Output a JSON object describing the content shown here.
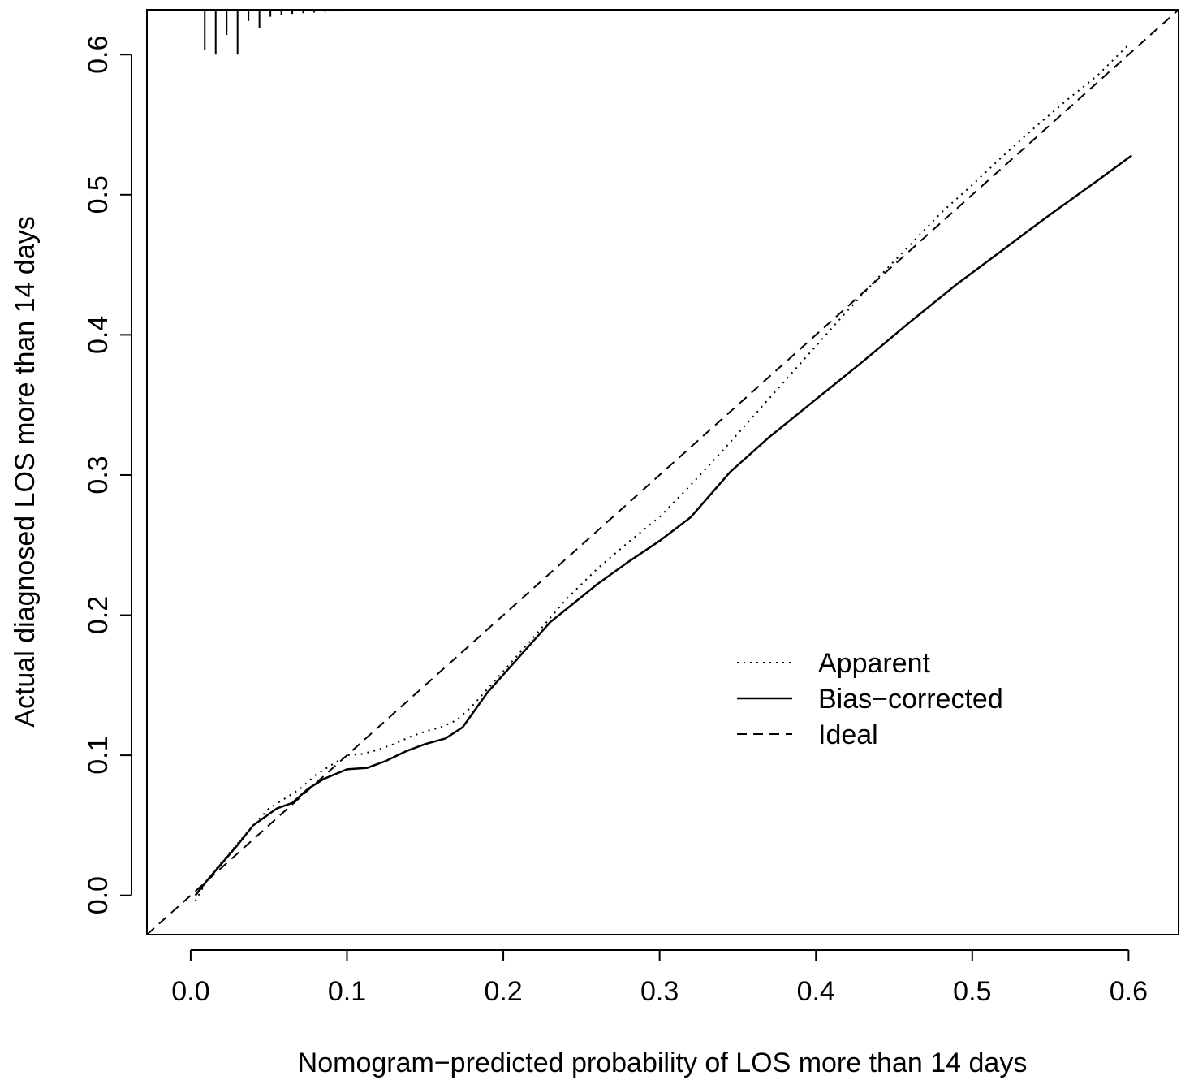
{
  "chart_data": {
    "type": "line",
    "title": "",
    "xlabel": "Nomogram−predicted probability of LOS more than 14 days",
    "ylabel": "Actual diagnosed LOS more than 14 days",
    "xlim": [
      -0.028,
      0.632
    ],
    "ylim": [
      -0.028,
      0.632
    ],
    "x_ticks": [
      0.0,
      0.1,
      0.2,
      0.3,
      0.4,
      0.5,
      0.6
    ],
    "x_tick_labels": [
      "0.0",
      "0.1",
      "0.2",
      "0.3",
      "0.4",
      "0.5",
      "0.6"
    ],
    "y_ticks": [
      0.0,
      0.1,
      0.2,
      0.3,
      0.4,
      0.5,
      0.6
    ],
    "y_tick_labels": [
      "0.0",
      "0.1",
      "0.2",
      "0.3",
      "0.4",
      "0.5",
      "0.6"
    ],
    "grid": false,
    "legend_position": "lower-right",
    "series": [
      {
        "name": "Apparent",
        "style": "dotted",
        "color": "#000000",
        "x": [
          0.003,
          0.01,
          0.02,
          0.03,
          0.04,
          0.05,
          0.06,
          0.07,
          0.08,
          0.09,
          0.1,
          0.11,
          0.12,
          0.13,
          0.14,
          0.15,
          0.16,
          0.17,
          0.18,
          0.2,
          0.22,
          0.24,
          0.26,
          0.28,
          0.3,
          0.32,
          0.34,
          0.36,
          0.38,
          0.4,
          0.42,
          0.44,
          0.46,
          0.48,
          0.5,
          0.52,
          0.54,
          0.56,
          0.58,
          0.6
        ],
        "y": [
          -0.004,
          0.01,
          0.024,
          0.037,
          0.05,
          0.062,
          0.069,
          0.076,
          0.086,
          0.093,
          0.1,
          0.101,
          0.104,
          0.108,
          0.113,
          0.117,
          0.12,
          0.125,
          0.135,
          0.16,
          0.185,
          0.211,
          0.233,
          0.252,
          0.27,
          0.293,
          0.317,
          0.342,
          0.367,
          0.392,
          0.417,
          0.441,
          0.464,
          0.487,
          0.507,
          0.528,
          0.548,
          0.567,
          0.585,
          0.607
        ]
      },
      {
        "name": "Bias−corrected",
        "style": "solid",
        "color": "#000000",
        "x": [
          0.003,
          0.01,
          0.02,
          0.03,
          0.04,
          0.05,
          0.055,
          0.065,
          0.075,
          0.085,
          0.1,
          0.113,
          0.125,
          0.138,
          0.15,
          0.163,
          0.174,
          0.19,
          0.21,
          0.23,
          0.26,
          0.28,
          0.3,
          0.32,
          0.345,
          0.37,
          0.4,
          0.43,
          0.46,
          0.49,
          0.52,
          0.55,
          0.58,
          0.602
        ],
        "y": [
          0.0,
          0.01,
          0.023,
          0.036,
          0.05,
          0.058,
          0.062,
          0.066,
          0.076,
          0.083,
          0.09,
          0.091,
          0.096,
          0.103,
          0.108,
          0.112,
          0.12,
          0.145,
          0.17,
          0.195,
          0.222,
          0.238,
          0.253,
          0.27,
          0.302,
          0.327,
          0.354,
          0.381,
          0.409,
          0.436,
          0.461,
          0.486,
          0.51,
          0.528
        ]
      },
      {
        "name": "Ideal",
        "style": "dashed",
        "color": "#000000",
        "x": [
          -0.028,
          0.632
        ],
        "y": [
          -0.028,
          0.632
        ]
      }
    ],
    "rug": {
      "position": "top",
      "x": [
        0.009,
        0.016,
        0.023,
        0.03,
        0.037,
        0.044,
        0.051,
        0.058,
        0.065,
        0.072,
        0.079,
        0.086,
        0.093,
        0.1,
        0.11,
        0.12,
        0.13,
        0.15,
        0.18,
        0.22,
        0.27,
        0.3
      ],
      "heights": [
        0.029,
        0.032,
        0.018,
        0.032,
        0.008,
        0.013,
        0.005,
        0.004,
        0.003,
        0.0025,
        0.002,
        0.0015,
        0.0012,
        0.001,
        0.001,
        0.0008,
        0.0008,
        0.0007,
        0.0006,
        0.0005,
        0.0004,
        0.0003
      ]
    }
  }
}
